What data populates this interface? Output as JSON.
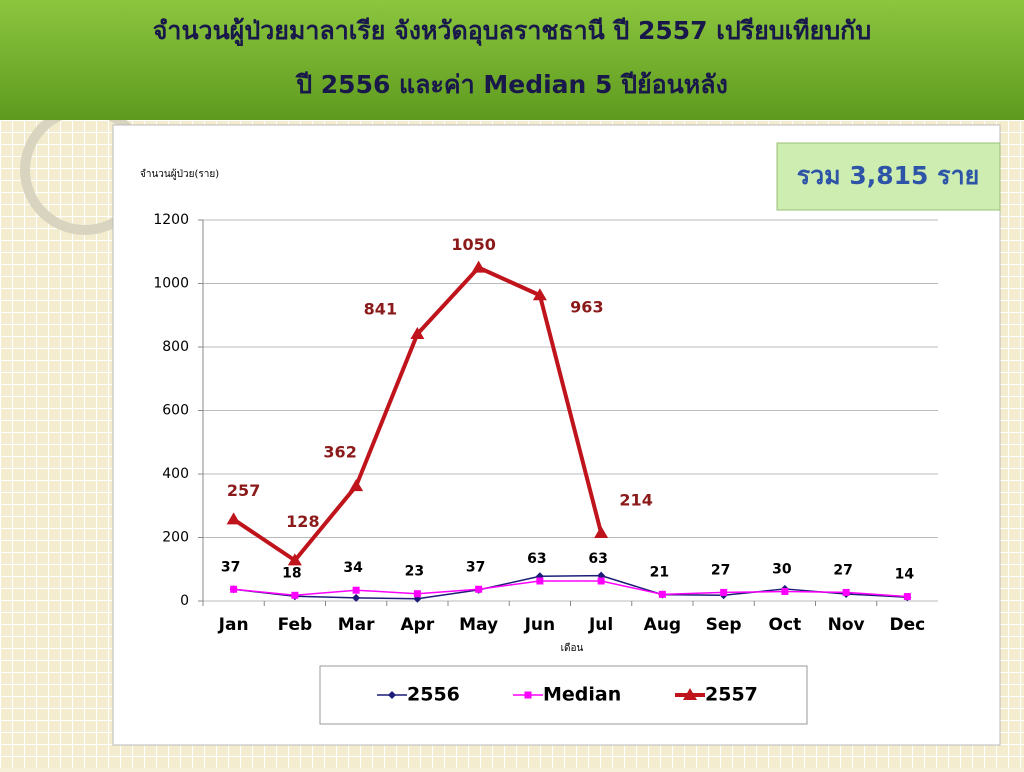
{
  "chart_data": {
    "type": "line",
    "title": [
      "จำนวนผู้ป่วยมาลาเรีย จังหวัดอุบลราชธานี ปี 2557 เปรียบเทียบกับ",
      "ปี 2556  และค่า Median 5 ปีย้อนหลัง"
    ],
    "y_label": "จำนวนผู้ป่วย(ราย)",
    "x_label": "เดือน",
    "annotation": "รวม 3,815 ราย",
    "categories": [
      "Jan",
      "Feb",
      "Mar",
      "Apr",
      "May",
      "Jun",
      "Jul",
      "Aug",
      "Sep",
      "Oct",
      "Nov",
      "Dec"
    ],
    "series": [
      {
        "name": "2556",
        "color": "#1c1c78",
        "marker": "diamond",
        "values": [
          37,
          15,
          10,
          7,
          35,
          78,
          80,
          20,
          18,
          38,
          22,
          12
        ]
      },
      {
        "name": "Median",
        "color": "#ff00ff",
        "marker": "square",
        "values": [
          37,
          18,
          34,
          23,
          37,
          63,
          63,
          21,
          27,
          30,
          27,
          14
        ],
        "labels": true
      },
      {
        "name": "2557",
        "color": "#c0141c",
        "marker": "triangle",
        "values": [
          257,
          128,
          362,
          841,
          1050,
          963,
          214,
          null,
          null,
          null,
          null,
          null
        ],
        "labels": true
      }
    ],
    "ylim": [
      0,
      1200
    ],
    "yticks": [
      0,
      200,
      400,
      600,
      800,
      1000,
      1200
    ],
    "grid": true,
    "legend": "bottom"
  }
}
